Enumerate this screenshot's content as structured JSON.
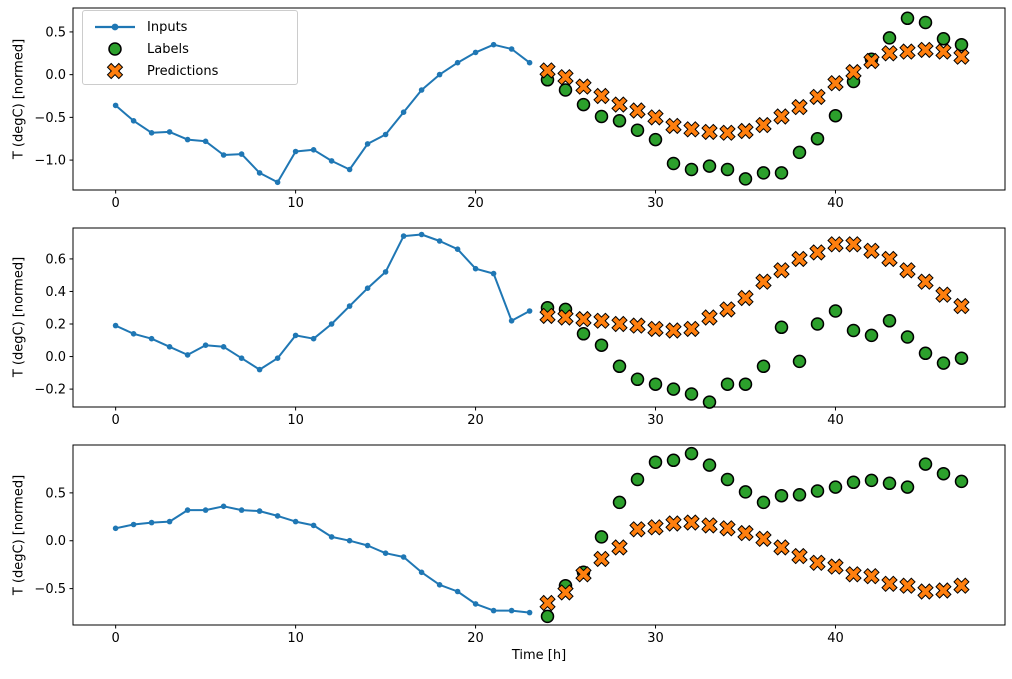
{
  "figure": {
    "xlabel": "Time [h]",
    "xticks": [
      0,
      10,
      20,
      30,
      40
    ],
    "xlim": [
      -2.37,
      49.42
    ],
    "legend": {
      "entries": [
        {
          "label": "Inputs",
          "marker": "line-dot",
          "color": "#1f77b4"
        },
        {
          "label": "Labels",
          "marker": "circle",
          "color": "#2ca02c"
        },
        {
          "label": "Predictions",
          "marker": "X",
          "color": "#ff7f0e"
        }
      ]
    },
    "colors": {
      "inputs": "#1f77b4",
      "labels": "#2ca02c",
      "predictions": "#ff7f0e",
      "marker_edge": "#000000",
      "axes": "#000000",
      "background": "#ffffff",
      "legend_border": "#cccccc"
    }
  },
  "chart_data": [
    {
      "type": "line+scatter",
      "ylabel": "T (degC) [normed]",
      "yticks": [
        0.5,
        0.0,
        -0.5,
        -1.0
      ],
      "ylim": [
        -1.35,
        0.78
      ],
      "series": [
        {
          "name": "Inputs",
          "type": "line",
          "marker": "dot",
          "x_start": 0,
          "values": [
            -0.36,
            -0.54,
            -0.68,
            -0.67,
            -0.76,
            -0.78,
            -0.94,
            -0.93,
            -1.15,
            -1.26,
            -0.9,
            -0.88,
            -1.01,
            -1.11,
            -0.81,
            -0.7,
            -0.44,
            -0.18,
            0.0,
            0.14,
            0.26,
            0.35,
            0.3,
            0.14
          ]
        },
        {
          "name": "Labels",
          "type": "scatter",
          "marker": "circle",
          "x_start": 24,
          "values": [
            -0.06,
            -0.18,
            -0.35,
            -0.49,
            -0.54,
            -0.65,
            -0.76,
            -1.04,
            -1.11,
            -1.07,
            -1.11,
            -1.22,
            -1.15,
            -1.15,
            -0.91,
            -0.75,
            -0.48,
            -0.08,
            0.18,
            0.43,
            0.66,
            0.61,
            0.42,
            0.35
          ]
        },
        {
          "name": "Predictions",
          "type": "scatter",
          "marker": "X",
          "x_start": 24,
          "values": [
            0.05,
            -0.03,
            -0.14,
            -0.25,
            -0.35,
            -0.42,
            -0.5,
            -0.6,
            -0.64,
            -0.67,
            -0.68,
            -0.66,
            -0.59,
            -0.49,
            -0.38,
            -0.26,
            -0.1,
            0.03,
            0.16,
            0.25,
            0.27,
            0.29,
            0.27,
            0.21
          ]
        }
      ]
    },
    {
      "type": "line+scatter",
      "ylabel": "T (degC) [normed]",
      "yticks": [
        0.6,
        0.4,
        0.2,
        0.0,
        -0.2
      ],
      "ylim": [
        -0.31,
        0.79
      ],
      "series": [
        {
          "name": "Inputs",
          "type": "line",
          "marker": "dot",
          "x_start": 0,
          "values": [
            0.19,
            0.14,
            0.11,
            0.06,
            0.01,
            0.07,
            0.06,
            -0.01,
            -0.08,
            -0.01,
            0.13,
            0.11,
            0.2,
            0.31,
            0.42,
            0.52,
            0.74,
            0.75,
            0.71,
            0.66,
            0.54,
            0.51,
            0.22,
            0.28
          ]
        },
        {
          "name": "Labels",
          "type": "scatter",
          "marker": "circle",
          "x_start": 24,
          "values": [
            0.3,
            0.29,
            0.14,
            0.07,
            -0.06,
            -0.14,
            -0.17,
            -0.2,
            -0.23,
            -0.28,
            -0.17,
            -0.17,
            -0.06,
            0.18,
            -0.03,
            0.2,
            0.28,
            0.16,
            0.13,
            0.22,
            0.12,
            0.02,
            -0.04,
            -0.01
          ]
        },
        {
          "name": "Predictions",
          "type": "scatter",
          "marker": "X",
          "x_start": 24,
          "values": [
            0.25,
            0.24,
            0.23,
            0.22,
            0.2,
            0.19,
            0.17,
            0.16,
            0.17,
            0.24,
            0.29,
            0.36,
            0.46,
            0.53,
            0.6,
            0.64,
            0.69,
            0.69,
            0.65,
            0.6,
            0.53,
            0.46,
            0.38,
            0.31
          ]
        }
      ]
    },
    {
      "type": "line+scatter",
      "ylabel": "T (degC) [normed]",
      "yticks": [
        0.5,
        0.0,
        -0.5
      ],
      "ylim": [
        -0.88,
        1.0
      ],
      "series": [
        {
          "name": "Inputs",
          "type": "line",
          "marker": "dot",
          "x_start": 0,
          "values": [
            0.13,
            0.17,
            0.19,
            0.2,
            0.32,
            0.32,
            0.36,
            0.32,
            0.31,
            0.26,
            0.2,
            0.16,
            0.04,
            0.0,
            -0.05,
            -0.13,
            -0.17,
            -0.33,
            -0.46,
            -0.53,
            -0.66,
            -0.73,
            -0.73,
            -0.75
          ]
        },
        {
          "name": "Labels",
          "type": "scatter",
          "marker": "circle",
          "x_start": 24,
          "values": [
            -0.79,
            -0.47,
            -0.33,
            0.04,
            0.4,
            0.64,
            0.82,
            0.84,
            0.91,
            0.79,
            0.64,
            0.51,
            0.4,
            0.47,
            0.48,
            0.52,
            0.56,
            0.61,
            0.63,
            0.6,
            0.56,
            0.8,
            0.7,
            0.62
          ]
        },
        {
          "name": "Predictions",
          "type": "scatter",
          "marker": "X",
          "x_start": 24,
          "values": [
            -0.65,
            -0.54,
            -0.35,
            -0.19,
            -0.07,
            0.12,
            0.14,
            0.18,
            0.19,
            0.16,
            0.13,
            0.08,
            0.02,
            -0.07,
            -0.16,
            -0.23,
            -0.27,
            -0.35,
            -0.37,
            -0.45,
            -0.47,
            -0.53,
            -0.52,
            -0.47
          ]
        }
      ]
    }
  ]
}
